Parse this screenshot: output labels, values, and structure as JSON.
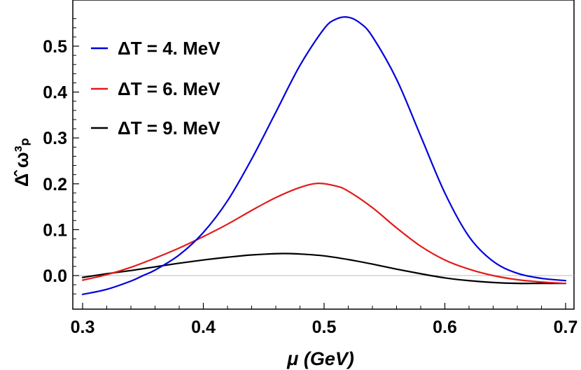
{
  "chart_data": {
    "type": "line",
    "xlabel": "μ (GeV)",
    "ylabel": "Δ̂ ω³ₚ",
    "xlim": [
      0.3,
      0.7
    ],
    "ylim": [
      -0.08,
      0.6
    ],
    "xticks": [
      "0.3",
      "0.4",
      "0.5",
      "0.6",
      "0.7"
    ],
    "yticks": [
      "0.0",
      "0.1",
      "0.2",
      "0.3",
      "0.4",
      "0.5"
    ],
    "grid": false,
    "legend_position": "top-left",
    "series": [
      {
        "name": "ΔT = 4.  MeV",
        "color": "#0000dd",
        "x": [
          0.3,
          0.32,
          0.34,
          0.35,
          0.36,
          0.38,
          0.4,
          0.42,
          0.44,
          0.46,
          0.48,
          0.5,
          0.51,
          0.52,
          0.53,
          0.54,
          0.56,
          0.58,
          0.6,
          0.62,
          0.64,
          0.66,
          0.68,
          0.7
        ],
        "y": [
          -0.041,
          -0.03,
          -0.012,
          0.0,
          0.012,
          0.045,
          0.094,
          0.163,
          0.254,
          0.356,
          0.458,
          0.538,
          0.559,
          0.563,
          0.55,
          0.521,
          0.428,
          0.304,
          0.18,
          0.085,
          0.031,
          0.005,
          -0.006,
          -0.011
        ]
      },
      {
        "name": "ΔT = 6.  MeV",
        "color": "#e41a1a",
        "x": [
          0.3,
          0.32,
          0.34,
          0.36,
          0.38,
          0.4,
          0.42,
          0.44,
          0.46,
          0.48,
          0.495,
          0.51,
          0.52,
          0.54,
          0.56,
          0.58,
          0.6,
          0.62,
          0.64,
          0.66,
          0.68,
          0.7
        ],
        "y": [
          -0.01,
          0.002,
          0.018,
          0.038,
          0.06,
          0.085,
          0.112,
          0.142,
          0.17,
          0.192,
          0.201,
          0.195,
          0.184,
          0.148,
          0.104,
          0.064,
          0.034,
          0.014,
          0.0,
          -0.009,
          -0.014,
          -0.017
        ]
      },
      {
        "name": "ΔT = 9.  MeV",
        "color": "#000000",
        "x": [
          0.3,
          0.32,
          0.34,
          0.36,
          0.38,
          0.4,
          0.42,
          0.44,
          0.465,
          0.48,
          0.5,
          0.52,
          0.54,
          0.56,
          0.58,
          0.6,
          0.62,
          0.64,
          0.66,
          0.68,
          0.7
        ],
        "y": [
          -0.004,
          0.004,
          0.011,
          0.019,
          0.027,
          0.034,
          0.04,
          0.045,
          0.048,
          0.047,
          0.043,
          0.035,
          0.025,
          0.014,
          0.004,
          -0.005,
          -0.011,
          -0.015,
          -0.017,
          -0.017,
          -0.017
        ]
      }
    ]
  }
}
